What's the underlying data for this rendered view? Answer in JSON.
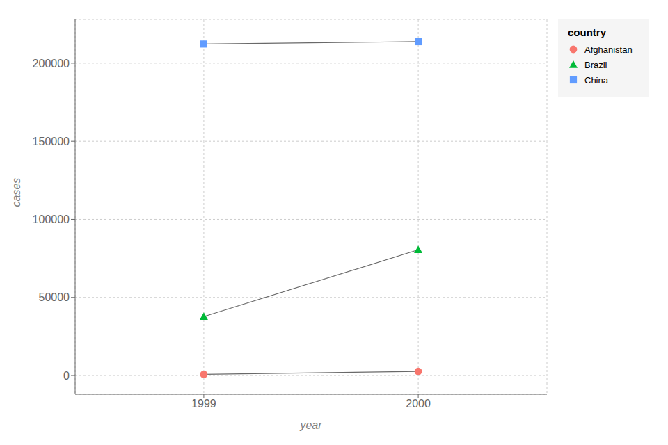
{
  "chart_data": {
    "type": "line",
    "xlabel": "year",
    "ylabel": "cases",
    "legend_title": "country",
    "x": [
      1999,
      2000
    ],
    "series": [
      {
        "name": "Afghanistan",
        "color": "#F8766D",
        "marker": "circle",
        "values": [
          745,
          2666
        ]
      },
      {
        "name": "Brazil",
        "color": "#00BA38",
        "marker": "triangle",
        "values": [
          37737,
          80488
        ]
      },
      {
        "name": "China",
        "color": "#619CFF",
        "marker": "square",
        "values": [
          212258,
          213766
        ]
      }
    ],
    "color": "#696969",
    "xlim": [
      1998.4,
      2000.6
    ],
    "xticks": [
      1999,
      2000
    ],
    "ylim": [
      -12000,
      228000
    ],
    "yticks": [
      0,
      50000,
      100000,
      150000,
      200000
    ],
    "grid": true,
    "legend": "right"
  }
}
